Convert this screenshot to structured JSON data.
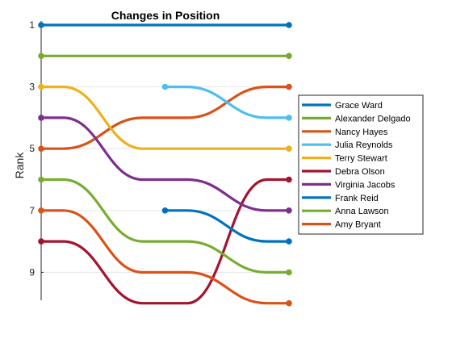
{
  "chart_data": {
    "type": "line",
    "title": "Changes in Position",
    "xlabel": "",
    "ylabel": "Rank",
    "x": [
      1,
      2,
      3
    ],
    "ylim": [
      10,
      0.5
    ],
    "y_reversed": true,
    "yticks": [
      1,
      3,
      5,
      7,
      9
    ],
    "grid": "horizontal",
    "legend_placement": "right",
    "series": [
      {
        "name": "Grace Ward",
        "color": "#0072BD",
        "x": [
          1,
          3
        ],
        "values": [
          1,
          1
        ]
      },
      {
        "name": "Alexander Delgado",
        "color": "#77AC30",
        "x": [
          1,
          3
        ],
        "values": [
          2,
          2
        ]
      },
      {
        "name": "Nancy Hayes",
        "color": "#D95319",
        "x": [
          1,
          2,
          3
        ],
        "values": [
          5,
          4,
          3
        ]
      },
      {
        "name": "Julia Reynolds",
        "color": "#4DBEEE",
        "x": [
          2,
          3
        ],
        "values": [
          3,
          4
        ]
      },
      {
        "name": "Terry Stewart",
        "color": "#EDB120",
        "x": [
          1,
          2,
          3
        ],
        "values": [
          3,
          5,
          5
        ]
      },
      {
        "name": "Debra Olson",
        "color": "#A2142F",
        "x": [
          1,
          2,
          3
        ],
        "values": [
          8,
          10,
          6
        ]
      },
      {
        "name": "Virginia Jacobs",
        "color": "#7E2F8E",
        "x": [
          1,
          2,
          3
        ],
        "values": [
          4,
          6,
          7
        ]
      },
      {
        "name": "Frank Reid",
        "color": "#0072BD",
        "x": [
          2,
          3
        ],
        "values": [
          7,
          8
        ]
      },
      {
        "name": "Anna Lawson",
        "color": "#77AC30",
        "x": [
          1,
          2,
          3
        ],
        "values": [
          6,
          8,
          9
        ]
      },
      {
        "name": "Amy Bryant",
        "color": "#D95319",
        "x": [
          1,
          2,
          3
        ],
        "values": [
          7,
          9,
          10
        ]
      }
    ]
  }
}
